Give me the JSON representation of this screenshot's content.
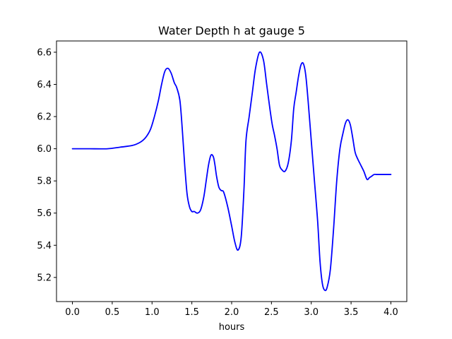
{
  "chart_data": {
    "type": "line",
    "title": "Water Depth h at gauge 5",
    "xlabel": "hours",
    "ylabel": "",
    "xlim": [
      -0.2,
      4.2
    ],
    "ylim": [
      5.05,
      6.67
    ],
    "xticks": [
      0.0,
      0.5,
      1.0,
      1.5,
      2.0,
      2.5,
      3.0,
      3.5,
      4.0
    ],
    "xtick_labels": [
      "0.0",
      "0.5",
      "1.0",
      "1.5",
      "2.0",
      "2.5",
      "3.0",
      "3.5",
      "4.0"
    ],
    "yticks": [
      5.2,
      5.4,
      5.6,
      5.8,
      6.0,
      6.2,
      6.4,
      6.6
    ],
    "ytick_labels": [
      "5.2",
      "5.4",
      "5.6",
      "5.8",
      "6.0",
      "6.2",
      "6.4",
      "6.6"
    ],
    "grid": false,
    "series": [
      {
        "color": "#0000ff",
        "x": [
          0.0,
          0.2,
          0.44,
          0.6,
          0.75,
          0.85,
          0.92,
          0.98,
          1.03,
          1.08,
          1.12,
          1.16,
          1.2,
          1.24,
          1.28,
          1.31,
          1.35,
          1.38,
          1.41,
          1.44,
          1.47,
          1.5,
          1.53,
          1.57,
          1.61,
          1.65,
          1.68,
          1.71,
          1.74,
          1.77,
          1.79,
          1.81,
          1.84,
          1.87,
          1.9,
          1.95,
          2.0,
          2.04,
          2.08,
          2.12,
          2.155,
          2.18,
          2.22,
          2.26,
          2.3,
          2.35,
          2.4,
          2.44,
          2.48,
          2.51,
          2.54,
          2.57,
          2.6,
          2.63,
          2.67,
          2.71,
          2.75,
          2.78,
          2.81,
          2.84,
          2.87,
          2.9,
          2.93,
          2.96,
          3.0,
          3.04,
          3.08,
          3.11,
          3.14,
          3.17,
          3.2,
          3.24,
          3.28,
          3.32,
          3.36,
          3.4,
          3.43,
          3.46,
          3.49,
          3.52,
          3.55,
          3.58,
          3.62,
          3.66,
          3.7,
          3.73,
          3.76,
          3.79,
          3.82,
          3.85,
          3.88,
          3.91,
          3.94,
          3.97,
          4.0
        ],
        "y": [
          6.0,
          6.0,
          6.0,
          6.01,
          6.02,
          6.04,
          6.07,
          6.12,
          6.2,
          6.3,
          6.4,
          6.48,
          6.5,
          6.47,
          6.41,
          6.38,
          6.3,
          6.12,
          5.9,
          5.72,
          5.64,
          5.61,
          5.61,
          5.6,
          5.62,
          5.7,
          5.8,
          5.9,
          5.96,
          5.95,
          5.9,
          5.83,
          5.76,
          5.74,
          5.73,
          5.64,
          5.52,
          5.42,
          5.37,
          5.45,
          5.75,
          6.05,
          6.2,
          6.35,
          6.5,
          6.6,
          6.55,
          6.4,
          6.25,
          6.15,
          6.08,
          6.0,
          5.9,
          5.87,
          5.86,
          5.91,
          6.05,
          6.25,
          6.35,
          6.45,
          6.52,
          6.53,
          6.46,
          6.3,
          6.05,
          5.8,
          5.55,
          5.3,
          5.16,
          5.12,
          5.14,
          5.25,
          5.5,
          5.8,
          6.0,
          6.1,
          6.16,
          6.18,
          6.15,
          6.07,
          5.98,
          5.94,
          5.9,
          5.86,
          5.81,
          5.82,
          5.83,
          5.84,
          5.84,
          5.84,
          5.84,
          5.84,
          5.84,
          5.84,
          5.84
        ]
      }
    ]
  }
}
